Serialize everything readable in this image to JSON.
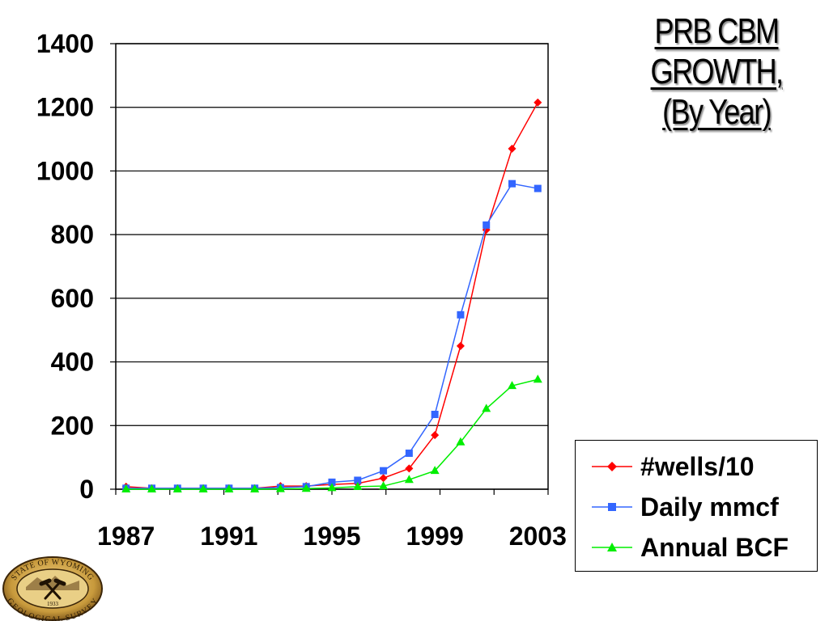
{
  "title_lines": [
    "PRB CBM",
    "GROWTH,",
    "(By Year)"
  ],
  "colors": {
    "wells": "#ff0000",
    "daily": "#3366ff",
    "annual": "#00ee00",
    "grid": "#000000"
  },
  "chart_data": {
    "type": "line",
    "title": "PRB CBM GROWTH, (By Year)",
    "x": [
      1987,
      1988,
      1989,
      1990,
      1991,
      1992,
      1993,
      1994,
      1995,
      1996,
      1997,
      1998,
      1999,
      2000,
      2001,
      2002,
      2003
    ],
    "xticks": [
      1987,
      1991,
      1995,
      1999,
      2003
    ],
    "yticks": [
      0,
      200,
      400,
      600,
      800,
      1000,
      1200,
      1400
    ],
    "ylim": [
      0,
      1400
    ],
    "xlim": [
      1986.6,
      2003.4
    ],
    "grid": "horizontal",
    "legend_position": "bottom-right",
    "series": [
      {
        "name": "#wells/10",
        "marker": "diamond",
        "color": "#ff0000",
        "values": [
          8,
          3,
          3,
          3,
          3,
          3,
          10,
          10,
          15,
          18,
          35,
          65,
          170,
          450,
          815,
          1070,
          1215
        ]
      },
      {
        "name": "Daily mmcf",
        "marker": "square",
        "color": "#3366ff",
        "values": [
          3,
          3,
          3,
          3,
          3,
          3,
          5,
          8,
          22,
          28,
          58,
          113,
          235,
          548,
          830,
          960,
          945
        ]
      },
      {
        "name": "Annual BCF",
        "marker": "triangle",
        "color": "#00ee00",
        "values": [
          0,
          0,
          0,
          0,
          0,
          0,
          1,
          2,
          4,
          8,
          10,
          30,
          58,
          148,
          253,
          325,
          345
        ]
      }
    ]
  },
  "seal": {
    "top_text": "STATE OF WYOMING",
    "bottom_text": "GEOLOGICAL SURVEY",
    "year": "1933",
    "icon": "crossed-hammers-icon"
  }
}
